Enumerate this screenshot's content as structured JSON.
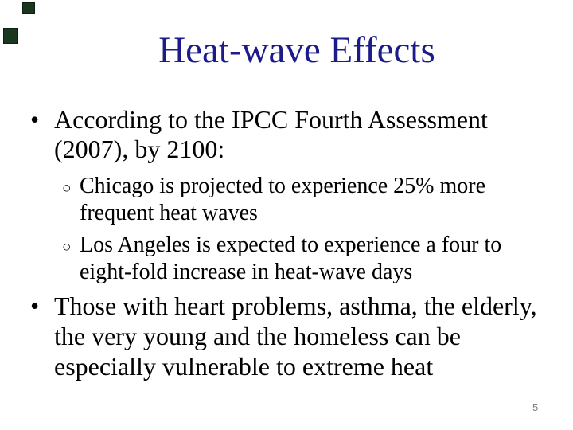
{
  "slide": {
    "title": "Heat-wave Effects",
    "page_number": "5",
    "bullets": [
      {
        "marker": "•",
        "lines": [
          "According to the IPCC Fourth Assessment",
          "(2007), by 2100:"
        ],
        "sub_bullets": [
          {
            "marker": "○",
            "lines": [
              "Chicago is projected to experience 25% more",
              "frequent heat waves"
            ]
          },
          {
            "marker": "○",
            "lines": [
              "Los Angeles is expected to experience a four to",
              "eight-fold increase in heat-wave days"
            ]
          }
        ]
      },
      {
        "marker": "•",
        "lines": [
          "Those with heart problems, asthma, the elderly,",
          "the very young and the homeless can be",
          "especially vulnerable to extreme heat"
        ]
      }
    ],
    "colors": {
      "title": "#1b1b8a",
      "body": "#000000",
      "page_number": "#7f7f7f",
      "corner_square": "#1a371f",
      "corner_square_border": "#0c2010",
      "background": "#ffffff"
    }
  }
}
